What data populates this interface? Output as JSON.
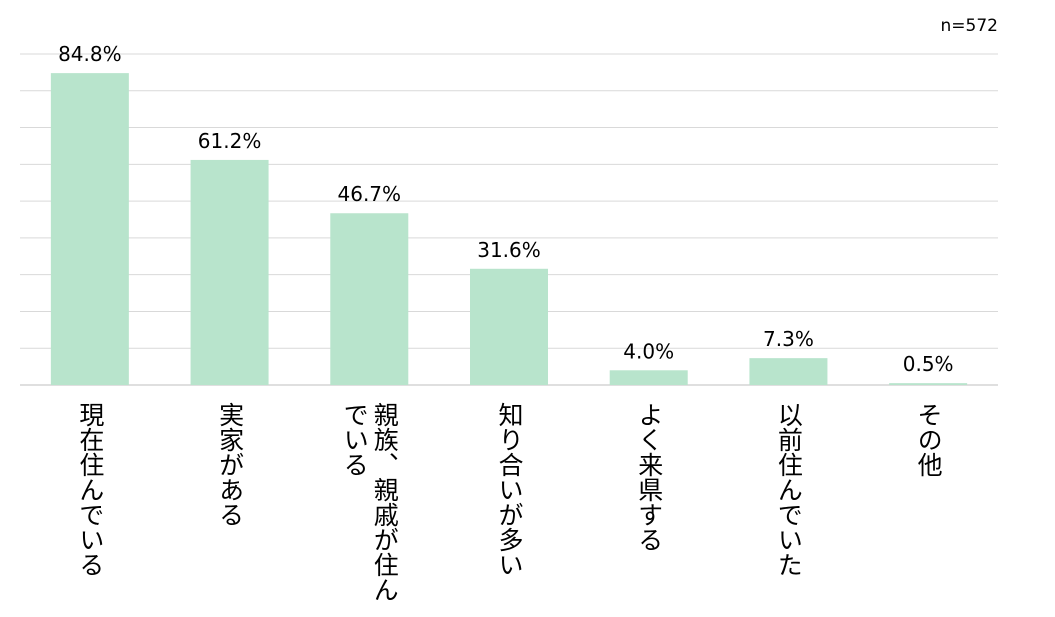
{
  "note": "n=572",
  "chart_data": {
    "type": "bar",
    "categories": [
      "現在住んでいる",
      "実家がある",
      "親族、親戚が住んでいる",
      "知り合いが多い",
      "よく来県する",
      "以前住んでいた",
      "その他"
    ],
    "values": [
      84.8,
      61.2,
      46.7,
      31.6,
      4.0,
      7.3,
      0.5
    ],
    "value_labels": [
      "84.8%",
      "61.2%",
      "46.7%",
      "31.6%",
      "4.0%",
      "7.3%",
      "0.5%"
    ],
    "ylim": [
      0,
      90
    ],
    "grid_step": 10,
    "grid": true,
    "colors": {
      "bar": "#b8e4cc",
      "grid": "#d9d9d9",
      "baseline": "#bfbfbf"
    }
  }
}
